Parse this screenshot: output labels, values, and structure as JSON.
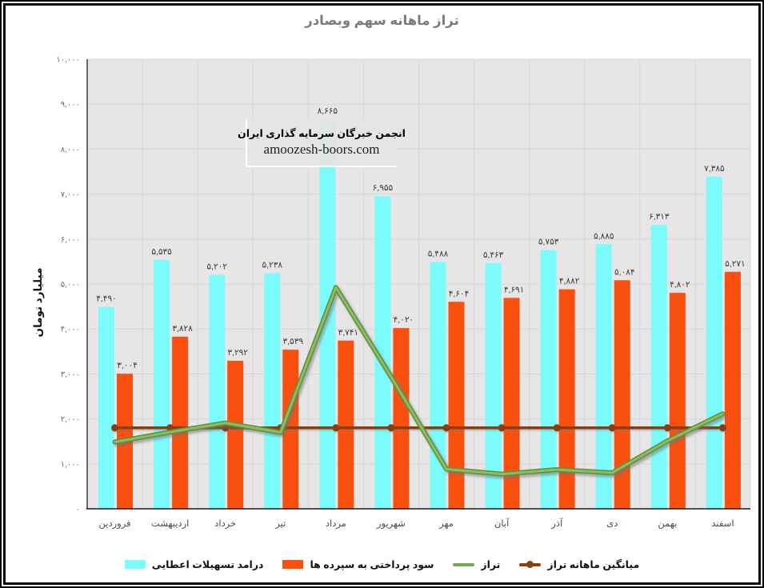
{
  "title": "تراز ماهانه سهم وبصادر",
  "watermark": {
    "line1": "انجمن خبرگان سرمایه گذاری ایران",
    "line2": "amoozesh-boors.com"
  },
  "y_axis": {
    "title": "میلیارد تومان",
    "tick_labels": [
      "۰",
      "۱,۰۰۰",
      "۲,۰۰۰",
      "۳,۰۰۰",
      "۴,۰۰۰",
      "۵,۰۰۰",
      "۶,۰۰۰",
      "۷,۰۰۰",
      "۸,۰۰۰",
      "۹,۰۰۰",
      "۱۰,۰۰۰"
    ],
    "min": 0,
    "max": 10000,
    "step": 1000
  },
  "legend": {
    "items": [
      {
        "label": "درامد تسهیلات اعطایی",
        "swatch": "bar",
        "color": "#7CFBFC"
      },
      {
        "label": "سود پرداختی به سپرده ها",
        "swatch": "bar",
        "color": "#FA500F"
      },
      {
        "label": "تراز",
        "swatch": "line",
        "color": "#74A84E"
      },
      {
        "label": "میانگین ماهانه تراز",
        "swatch": "line-dot",
        "color": "#8C3E0E"
      }
    ]
  },
  "colors": {
    "income_bar": "#7CFBFC",
    "interest_bar": "#FA500F",
    "balance_line": "#74A84E",
    "balance_line_dark": "#5F8F3D",
    "average_line": "#8C3E0E",
    "plot_bg": "#E7E5E5",
    "gridline": "#D8D5D5",
    "axis_line": "#3F3F3F",
    "title_text": "#7A7A7A",
    "tick_text": "#6B6B6B",
    "category_text": "#4A4A4A",
    "data_label_text": "#3A3A3A"
  },
  "chart_data": {
    "type": "bar",
    "subtype": "combo-bar-line",
    "title": "تراز ماهانه سهم وبصادر",
    "xlabel": "",
    "ylabel": "میلیارد تومان",
    "ylim": [
      0,
      10000
    ],
    "grid": true,
    "legend_position": "bottom",
    "categories": [
      "فروردین",
      "اردیبهشت",
      "خرداد",
      "تیر",
      "مرداد",
      "شهریور",
      "مهر",
      "آبان",
      "آذر",
      "دی",
      "بهمن",
      "اسفند"
    ],
    "series": [
      {
        "name": "درامد تسهیلات اعطایی",
        "type": "bar",
        "color": "#7CFBFC",
        "values": [
          4490,
          5535,
          5202,
          5238,
          8665,
          6955,
          5488,
          5463,
          5753,
          5885,
          6313,
          7385
        ],
        "labels": [
          "۴,۴۹۰",
          "۵,۵۳۵",
          "۵,۲۰۲",
          "۵,۲۳۸",
          "۸,۶۶۵",
          "۶,۹۵۵",
          "۵,۴۸۸",
          "۵,۴۶۳",
          "۵,۷۵۳",
          "۵,۸۸۵",
          "۶,۳۱۳",
          "۷,۳۸۵"
        ]
      },
      {
        "name": "سود پرداختی به سپرده ها",
        "type": "bar",
        "color": "#FA500F",
        "values": [
          3004,
          3828,
          3292,
          3539,
          3741,
          4020,
          4604,
          4691,
          4882,
          5084,
          4802,
          5271
        ],
        "labels": [
          "۳,۰۰۴",
          "۳,۸۲۸",
          "۳,۲۹۲",
          "۳,۵۳۹",
          "۳,۷۴۱",
          "۴,۰۲۰",
          "۴,۶۰۴",
          "۴,۶۹۱",
          "۴,۸۸۲",
          "۵,۰۸۴",
          "۴,۸۰۲",
          "۵,۲۷۱"
        ]
      },
      {
        "name": "تراز",
        "type": "line",
        "color": "#74A84E",
        "values": [
          1486,
          1707,
          1910,
          1699,
          4924,
          2935,
          884,
          772,
          871,
          801,
          1511,
          2114
        ]
      },
      {
        "name": "میانگین ماهانه تراز",
        "type": "line",
        "color": "#8C3E0E",
        "marker": "circle",
        "values": [
          1801,
          1801,
          1801,
          1801,
          1801,
          1801,
          1801,
          1801,
          1801,
          1801,
          1801,
          1801
        ]
      }
    ]
  }
}
